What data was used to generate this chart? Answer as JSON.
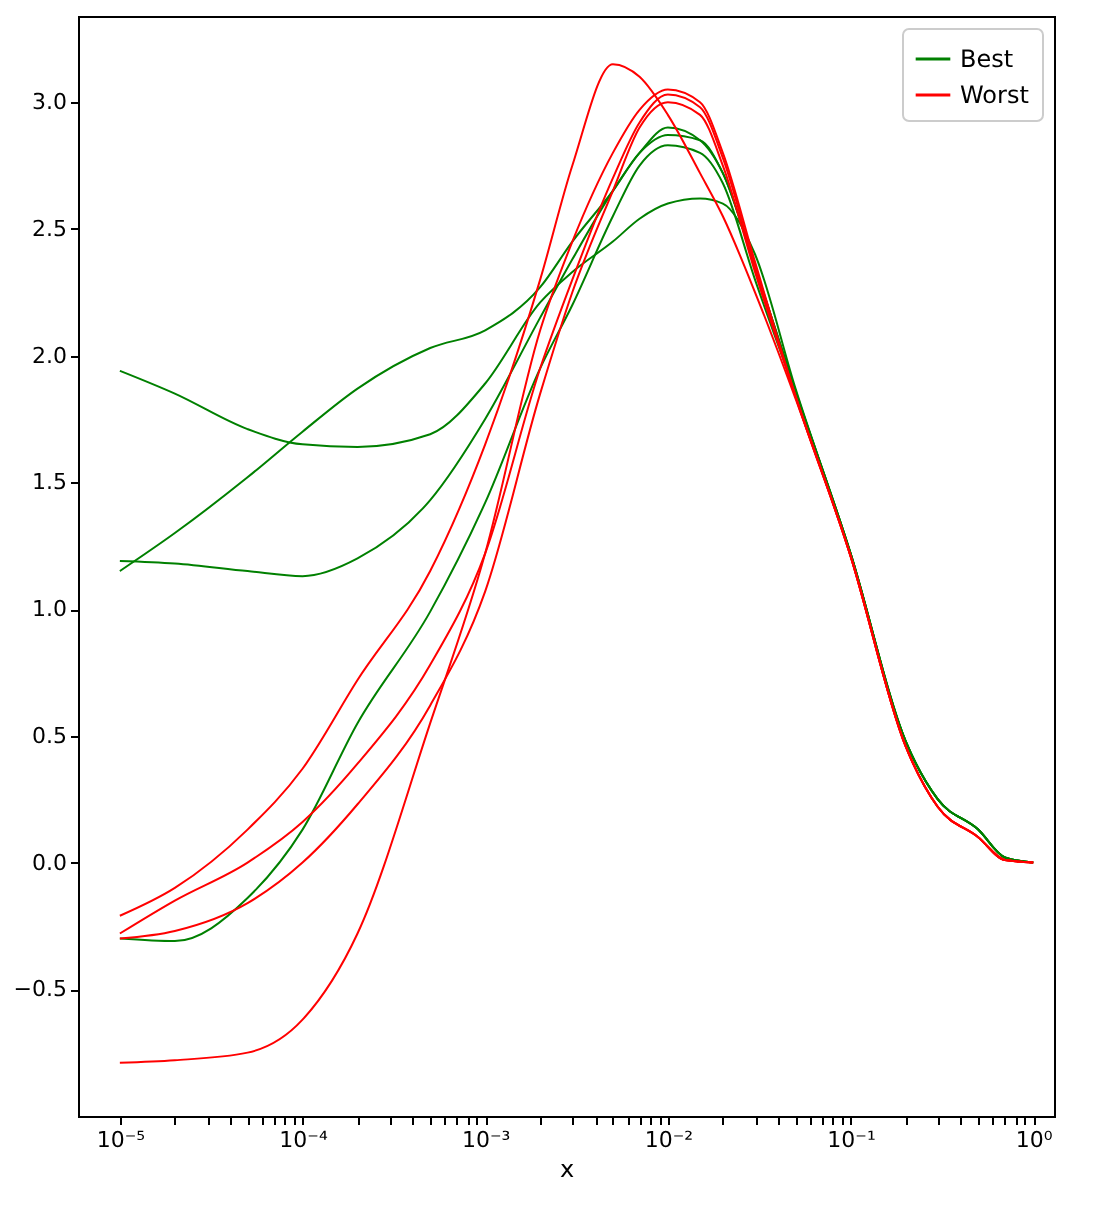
{
  "chart_data": {
    "type": "line",
    "xlabel": "x",
    "log": "x",
    "legend": "top right",
    "x": [
      1e-05,
      2e-05,
      5e-05,
      0.0001,
      0.0002,
      0.0005,
      0.001,
      0.002,
      0.003,
      0.005,
      0.007,
      0.01,
      0.015,
      0.02,
      0.03,
      0.05,
      0.1,
      0.2,
      0.3,
      0.5,
      0.7,
      1
    ],
    "xlim": [
      5.9e-06,
      1.3
    ],
    "ylim": [
      -1.0,
      3.34
    ],
    "xticks": [
      {
        "value": 1e-05,
        "label": "10⁻⁵"
      },
      {
        "value": 2e-05,
        "label": null
      },
      {
        "value": 3e-05,
        "label": null
      },
      {
        "value": 4e-05,
        "label": null
      },
      {
        "value": 5e-05,
        "label": null
      },
      {
        "value": 6e-05,
        "label": null
      },
      {
        "value": 7e-05,
        "label": null
      },
      {
        "value": 8e-05,
        "label": null
      },
      {
        "value": 9e-05,
        "label": null
      },
      {
        "value": 0.0001,
        "label": "10⁻⁴"
      },
      {
        "value": 0.0002,
        "label": null
      },
      {
        "value": 0.0003,
        "label": null
      },
      {
        "value": 0.0004,
        "label": null
      },
      {
        "value": 0.0005,
        "label": null
      },
      {
        "value": 0.0006,
        "label": null
      },
      {
        "value": 0.0007,
        "label": null
      },
      {
        "value": 0.0008,
        "label": null
      },
      {
        "value": 0.0009,
        "label": null
      },
      {
        "value": 0.001,
        "label": "10⁻³"
      },
      {
        "value": 0.002,
        "label": null
      },
      {
        "value": 0.003,
        "label": null
      },
      {
        "value": 0.004,
        "label": null
      },
      {
        "value": 0.005,
        "label": null
      },
      {
        "value": 0.006,
        "label": null
      },
      {
        "value": 0.007,
        "label": null
      },
      {
        "value": 0.008,
        "label": null
      },
      {
        "value": 0.009,
        "label": null
      },
      {
        "value": 0.01,
        "label": "10⁻²"
      },
      {
        "value": 0.02,
        "label": null
      },
      {
        "value": 0.03,
        "label": null
      },
      {
        "value": 0.04,
        "label": null
      },
      {
        "value": 0.05,
        "label": null
      },
      {
        "value": 0.06,
        "label": null
      },
      {
        "value": 0.07,
        "label": null
      },
      {
        "value": 0.08,
        "label": null
      },
      {
        "value": 0.09,
        "label": null
      },
      {
        "value": 0.1,
        "label": "10⁻¹"
      },
      {
        "value": 0.2,
        "label": null
      },
      {
        "value": 0.3,
        "label": null
      },
      {
        "value": 0.4,
        "label": null
      },
      {
        "value": 0.5,
        "label": null
      },
      {
        "value": 0.6,
        "label": null
      },
      {
        "value": 0.7,
        "label": null
      },
      {
        "value": 0.8,
        "label": null
      },
      {
        "value": 0.9,
        "label": null
      },
      {
        "value": 1,
        "label": "10⁰"
      }
    ],
    "yticks": [
      {
        "value": -0.5,
        "label": "−0.5"
      },
      {
        "value": 0,
        "label": "0.0"
      },
      {
        "value": 0.5,
        "label": "0.5"
      },
      {
        "value": 1,
        "label": "1.0"
      },
      {
        "value": 1.5,
        "label": "1.5"
      },
      {
        "value": 2,
        "label": "2.0"
      },
      {
        "value": 2.5,
        "label": "2.5"
      },
      {
        "value": 3,
        "label": "3.0"
      }
    ],
    "series": [
      {
        "name": "Best",
        "color": "#008000",
        "values": [
          1.94,
          1.85,
          1.71,
          1.65,
          1.64,
          1.69,
          1.89,
          2.21,
          2.33,
          2.45,
          2.54,
          2.6,
          2.62,
          2.6,
          2.4,
          1.87,
          1.22,
          0.48,
          0.25,
          0.13,
          0.02,
          0.0
        ]
      },
      {
        "color": "#008000",
        "values": [
          1.15,
          1.3,
          1.52,
          1.7,
          1.87,
          2.03,
          2.1,
          2.27,
          2.45,
          2.65,
          2.8,
          2.87,
          2.85,
          2.72,
          2.35,
          1.86,
          1.22,
          0.48,
          0.25,
          0.13,
          0.02,
          0.0
        ]
      },
      {
        "color": "#008000",
        "values": [
          1.19,
          1.18,
          1.15,
          1.13,
          1.2,
          1.43,
          1.75,
          2.15,
          2.38,
          2.65,
          2.8,
          2.9,
          2.85,
          2.72,
          2.35,
          1.86,
          1.22,
          0.48,
          0.25,
          0.13,
          0.02,
          0.0
        ]
      },
      {
        "color": "#008000",
        "values": [
          -0.3,
          -0.31,
          -0.14,
          0.13,
          0.55,
          0.99,
          1.42,
          1.95,
          2.2,
          2.55,
          2.75,
          2.83,
          2.8,
          2.68,
          2.3,
          1.85,
          1.22,
          0.48,
          0.25,
          0.13,
          0.02,
          0.0
        ]
      },
      {
        "name": "Worst",
        "color": "#ff0000",
        "values": [
          -0.21,
          -0.1,
          0.13,
          0.37,
          0.72,
          1.15,
          1.65,
          2.3,
          2.75,
          3.15,
          3.1,
          2.95,
          2.72,
          2.55,
          2.25,
          1.83,
          1.21,
          0.46,
          0.22,
          0.1,
          0.01,
          0.0
        ]
      },
      {
        "color": "#ff0000",
        "values": [
          -0.28,
          -0.15,
          0.0,
          0.16,
          0.39,
          0.78,
          1.22,
          1.95,
          2.3,
          2.7,
          2.92,
          3.03,
          2.98,
          2.78,
          2.35,
          1.84,
          1.21,
          0.46,
          0.22,
          0.1,
          0.01,
          0.0
        ]
      },
      {
        "color": "#ff0000",
        "values": [
          -0.3,
          -0.27,
          -0.16,
          0.0,
          0.23,
          0.62,
          1.07,
          1.85,
          2.25,
          2.65,
          2.9,
          3.0,
          2.95,
          2.75,
          2.33,
          1.84,
          1.21,
          0.46,
          0.22,
          0.1,
          0.01,
          0.0
        ]
      },
      {
        "color": "#ff0000",
        "values": [
          -0.79,
          -0.78,
          -0.75,
          -0.62,
          -0.28,
          0.55,
          1.22,
          2.1,
          2.45,
          2.8,
          2.97,
          3.05,
          3.0,
          2.8,
          2.37,
          1.84,
          1.21,
          0.46,
          0.22,
          0.1,
          0.01,
          0.0
        ]
      }
    ]
  }
}
